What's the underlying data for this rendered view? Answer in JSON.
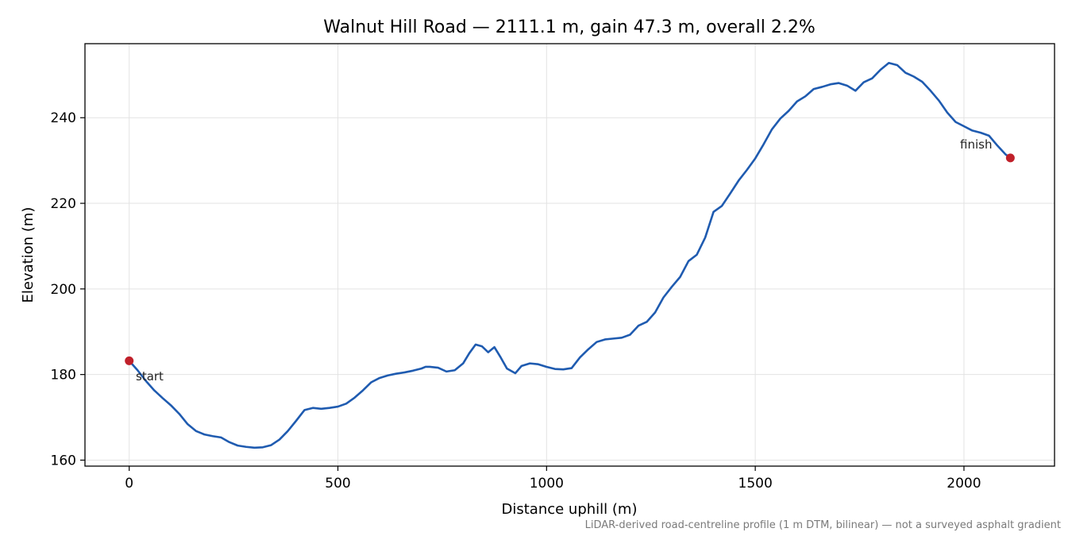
{
  "chart_data": {
    "type": "line",
    "title": "Walnut Hill Road — 2111.1 m, gain 47.3 m, overall 2.2%",
    "xlabel": "Distance uphill (m)",
    "ylabel": "Elevation (m)",
    "xlim": [
      -106,
      2217
    ],
    "ylim": [
      158.6,
      257.3
    ],
    "xticks": [
      0,
      500,
      1000,
      1500,
      2000
    ],
    "yticks": [
      160,
      180,
      200,
      220,
      240
    ],
    "grid": true,
    "line_color": "#1f5bb0",
    "marker_color": "#c0202a",
    "series": [
      {
        "x": [
          0,
          20,
          40,
          60,
          80,
          100,
          120,
          140,
          160,
          180,
          200,
          220,
          240,
          260,
          280,
          300,
          320,
          340,
          360,
          380,
          400,
          420,
          440,
          460,
          480,
          500,
          520,
          540,
          560,
          580,
          600,
          620,
          640,
          660,
          680,
          700,
          710,
          720,
          740,
          760,
          780,
          800,
          815,
          830,
          845,
          860,
          875,
          890,
          905,
          925,
          940,
          960,
          980,
          1000,
          1020,
          1040,
          1060,
          1080,
          1100,
          1120,
          1140,
          1160,
          1180,
          1200,
          1220,
          1240,
          1260,
          1280,
          1300,
          1320,
          1340,
          1360,
          1380,
          1400,
          1420,
          1440,
          1460,
          1480,
          1500,
          1520,
          1540,
          1560,
          1580,
          1600,
          1620,
          1640,
          1660,
          1680,
          1700,
          1720,
          1740,
          1760,
          1780,
          1800,
          1820,
          1840,
          1860,
          1880,
          1900,
          1920,
          1940,
          1960,
          1980,
          2000,
          2020,
          2040,
          2060,
          2080,
          2100,
          2111.1
        ],
        "y": [
          183.2,
          181.0,
          178.5,
          176.3,
          174.5,
          172.8,
          170.8,
          168.4,
          166.8,
          166.0,
          165.6,
          165.3,
          164.2,
          163.4,
          163.1,
          162.9,
          163.0,
          163.5,
          164.8,
          166.8,
          169.2,
          171.7,
          172.2,
          172.0,
          172.2,
          172.5,
          173.2,
          174.6,
          176.3,
          178.2,
          179.2,
          179.8,
          180.2,
          180.5,
          180.9,
          181.4,
          181.8,
          181.8,
          181.6,
          180.7,
          181.0,
          182.6,
          185.0,
          187.0,
          186.6,
          185.2,
          186.4,
          184.0,
          181.4,
          180.3,
          182.0,
          182.6,
          182.4,
          181.8,
          181.3,
          181.2,
          181.5,
          184.0,
          185.9,
          187.6,
          188.2,
          188.4,
          188.6,
          189.3,
          191.4,
          192.3,
          194.5,
          198.0,
          200.5,
          202.8,
          206.5,
          208.0,
          212.0,
          218.0,
          219.4,
          222.3,
          225.3,
          227.8,
          230.5,
          233.8,
          237.3,
          239.8,
          241.6,
          243.8,
          245.0,
          246.7,
          247.2,
          247.8,
          248.1,
          247.5,
          246.3,
          248.3,
          249.2,
          251.2,
          252.8,
          252.3,
          250.5,
          249.6,
          248.4,
          246.3,
          244.0,
          241.2,
          239.0,
          238.0,
          237.0,
          236.5,
          235.8,
          233.5,
          231.4,
          230.6
        ]
      }
    ],
    "annotations": [
      {
        "text": "start",
        "x": 0,
        "y": 183.2
      },
      {
        "text": "finish",
        "x": 2111.1,
        "y": 230.6
      }
    ]
  },
  "footnote": "LiDAR-derived road-centreline profile (1 m DTM, bilinear) — not a surveyed asphalt gradient"
}
